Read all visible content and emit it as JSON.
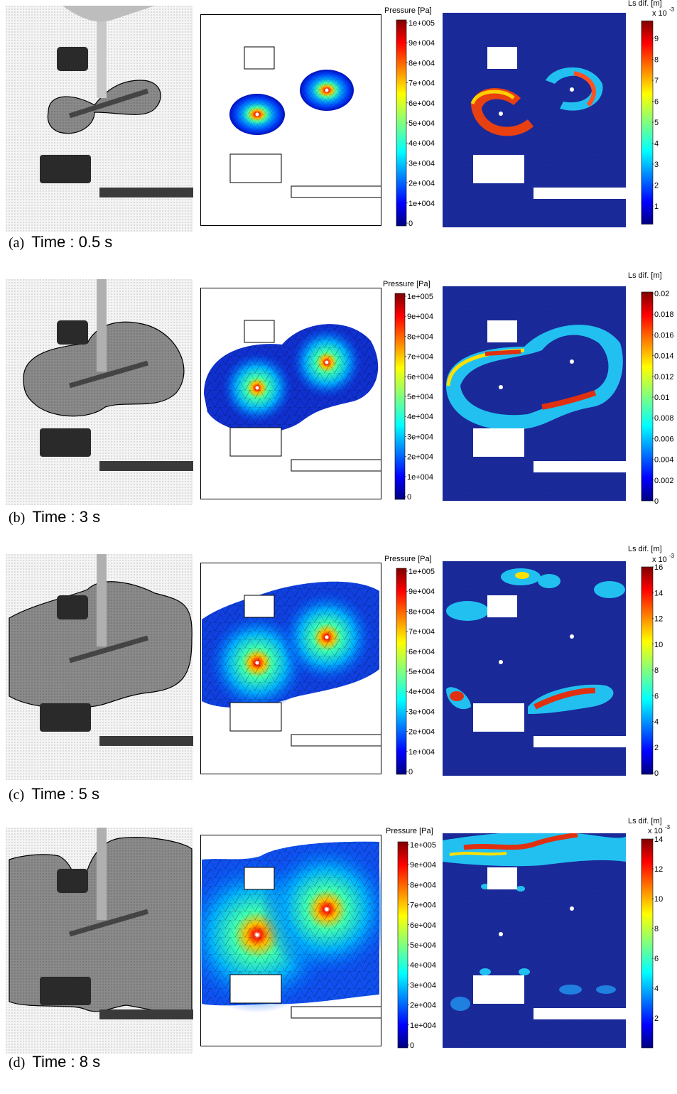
{
  "panels": [
    {
      "tag": "(a)",
      "caption": "Time : 0.5 s",
      "pressure_label": "Pressure [Pa]",
      "pressure_ticks": [
        "1e+005",
        "9e+004",
        "8e+004",
        "7e+004",
        "6e+004",
        "5e+004",
        "4e+004",
        "3e+004",
        "2e+004",
        "1e+004",
        "0"
      ],
      "ls_label": "Ls dif. [m]",
      "ls_exponent": "x 10",
      "ls_exponent_power": "-3",
      "ls_ticks": [
        "9",
        "8",
        "7",
        "6",
        "5",
        "4",
        "3",
        "2",
        "1"
      ],
      "ls_top_value": ""
    },
    {
      "tag": "(b)",
      "caption": "Time : 3 s",
      "pressure_label": "Pressure [Pa]",
      "pressure_ticks": [
        "1e+005",
        "9e+004",
        "8e+004",
        "7e+004",
        "6e+004",
        "5e+004",
        "4e+004",
        "3e+004",
        "2e+004",
        "1e+004",
        "0"
      ],
      "ls_label": "Ls dif. [m]",
      "ls_exponent": "",
      "ls_exponent_power": "",
      "ls_ticks": [
        "0.02",
        "0.018",
        "0.016",
        "0.014",
        "0.012",
        "0.01",
        "0.008",
        "0.006",
        "0.004",
        "0.002",
        "0"
      ],
      "ls_top_value": ""
    },
    {
      "tag": "(c)",
      "caption": "Time : 5 s",
      "pressure_label": "Pressure [Pa]",
      "pressure_ticks": [
        "1e+005",
        "9e+004",
        "8e+004",
        "7e+004",
        "6e+004",
        "5e+004",
        "4e+004",
        "3e+004",
        "2e+004",
        "1e+004",
        "0"
      ],
      "ls_label": "Ls dif. [m]",
      "ls_exponent": "x 10",
      "ls_exponent_power": "-3",
      "ls_ticks": [
        "16",
        "14",
        "12",
        "10",
        "8",
        "6",
        "4",
        "2",
        "0"
      ],
      "ls_top_value": ""
    },
    {
      "tag": "(d)",
      "caption": "Time : 8 s",
      "pressure_label": "Pressure [Pa]",
      "pressure_ticks": [
        "1e+005",
        "9e+004",
        "8e+004",
        "7e+004",
        "6e+004",
        "5e+004",
        "4e+004",
        "3e+004",
        "2e+004",
        "1e+004",
        "0"
      ],
      "ls_label": "Ls dif. [m]",
      "ls_exponent": "x 10",
      "ls_exponent_power": "-3",
      "ls_ticks": [
        "14",
        "12",
        "10",
        "8",
        "6",
        "4",
        "2"
      ],
      "ls_top_value": ""
    }
  ],
  "colors": {
    "jet_top": "#7f0000",
    "jet_red": "#ff0000",
    "jet_yellow": "#ffff00",
    "jet_cyan": "#00ffff",
    "jet_blue": "#0000ff",
    "jet_bottom": "#00007f",
    "background_blue": "#1a2a9a"
  }
}
